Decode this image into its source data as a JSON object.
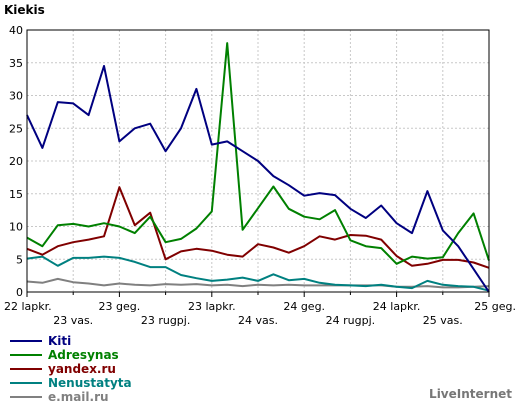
{
  "chart_data": {
    "type": "line",
    "title": "Kiekis",
    "xlabel": "",
    "ylabel": "",
    "ylim": [
      0,
      40
    ],
    "yticks": [
      0,
      5,
      10,
      15,
      20,
      25,
      30,
      35,
      40
    ],
    "grid": true,
    "legend_position": "bottom-left",
    "x_ticks_top": [
      "22 lapkr.",
      "23 geg.",
      "23 lapkr.",
      "24 geg.",
      "24 lapkr.",
      "25 geg."
    ],
    "x_ticks_bottom": [
      "23 vas.",
      "23 rugpj.",
      "24 vas.",
      "24 rugpj.",
      "25 vas."
    ],
    "series": [
      {
        "name": "Kiti",
        "color": "#000080",
        "values": [
          27,
          22,
          29,
          28.8,
          27,
          34.5,
          23,
          25,
          25.7,
          21.5,
          25,
          31,
          22.5,
          23,
          21.5,
          20,
          17.7,
          16.3,
          14.7,
          15.1,
          14.8,
          12.7,
          11.3,
          13.2,
          10.5,
          9,
          15.4,
          9.4,
          7,
          3.5,
          0
        ]
      },
      {
        "name": "Adresynas",
        "color": "#008000",
        "values": [
          8.3,
          7,
          10.2,
          10.4,
          10,
          10.5,
          10,
          9,
          11.5,
          7.6,
          8.1,
          9.7,
          12.3,
          38,
          9.5,
          12.8,
          16.1,
          12.7,
          11.5,
          11.1,
          12.5,
          7.9,
          7,
          6.7,
          4.3,
          5.4,
          5.1,
          5.3,
          9,
          12,
          4.8
        ]
      },
      {
        "name": "yandex.ru",
        "color": "#800000",
        "values": [
          6.6,
          5.7,
          7,
          7.6,
          8,
          8.5,
          16,
          10.2,
          12.1,
          5,
          6.2,
          6.6,
          6.3,
          5.7,
          5.4,
          7.3,
          6.8,
          6,
          7,
          8.5,
          8,
          8.7,
          8.6,
          8,
          5.5,
          4,
          4.3,
          4.9,
          4.9,
          4.5,
          3.7
        ]
      },
      {
        "name": "Nenustatyta",
        "color": "#008080",
        "values": [
          5.1,
          5.4,
          4,
          5.2,
          5.2,
          5.4,
          5.2,
          4.6,
          3.8,
          3.8,
          2.6,
          2.1,
          1.7,
          1.9,
          2.2,
          1.7,
          2.7,
          1.8,
          2,
          1.4,
          1.1,
          1,
          0.9,
          1.1,
          0.8,
          0.6,
          1.7,
          1.1,
          0.9,
          0.8,
          0.2
        ]
      },
      {
        "name": "e.mail.ru",
        "color": "#808080",
        "values": [
          1.6,
          1.4,
          2,
          1.5,
          1.3,
          1,
          1.3,
          1.1,
          1,
          1.2,
          1.1,
          1.2,
          1,
          1.1,
          0.9,
          1.1,
          1,
          1.1,
          1,
          1,
          1,
          1,
          1,
          1,
          0.8,
          0.8,
          0.9,
          0.7,
          0.7,
          0.8,
          0.9
        ]
      }
    ]
  },
  "brand": "LiveInternet"
}
